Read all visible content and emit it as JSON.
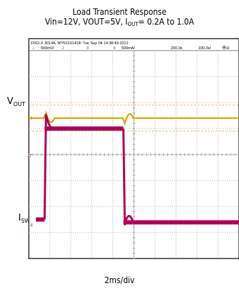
{
  "chart_data": {
    "type": "line",
    "title": "Load Transient Response",
    "subtitle": {
      "prefix": "Vin=12V, VOUT=5V, I",
      "sub": "OUT",
      "suffix": "= 0.2A to 1.0A"
    },
    "xlabel": "2ms/div",
    "header": {
      "line1": "DSO-X 3014A, MY52161418: Tue Sep 04 14:38:49 2012",
      "ch1_num": "1",
      "ch1_scale": "500mV/",
      "ch2_num": "2",
      "ch3_num": "3",
      "ch4_num": "4",
      "ch4_scale": "500mA/",
      "timebase": "200.0s",
      "delay": "100.0s/",
      "run_state": "停止"
    },
    "grid": {
      "divisions_x": 10,
      "divisions_y": 8,
      "on": true
    },
    "series": [
      {
        "name": "VOUT",
        "label_main": "V",
        "label_sub": "OUT",
        "color": "#e0a000",
        "transients_at_ms": [
          1.5,
          9.0
        ],
        "undershoot_divs": 0.4
      },
      {
        "name": "ISW",
        "label_main": "I",
        "label_sub": "SW",
        "color": "#b0005a",
        "low_level_divs": -2.5,
        "high_level_divs": 1.0,
        "step_up_ms": 1.5,
        "step_down_ms": 9.0
      }
    ],
    "ch1_marker": "1",
    "ch4_marker": "4",
    "trigger_marker": "T"
  }
}
